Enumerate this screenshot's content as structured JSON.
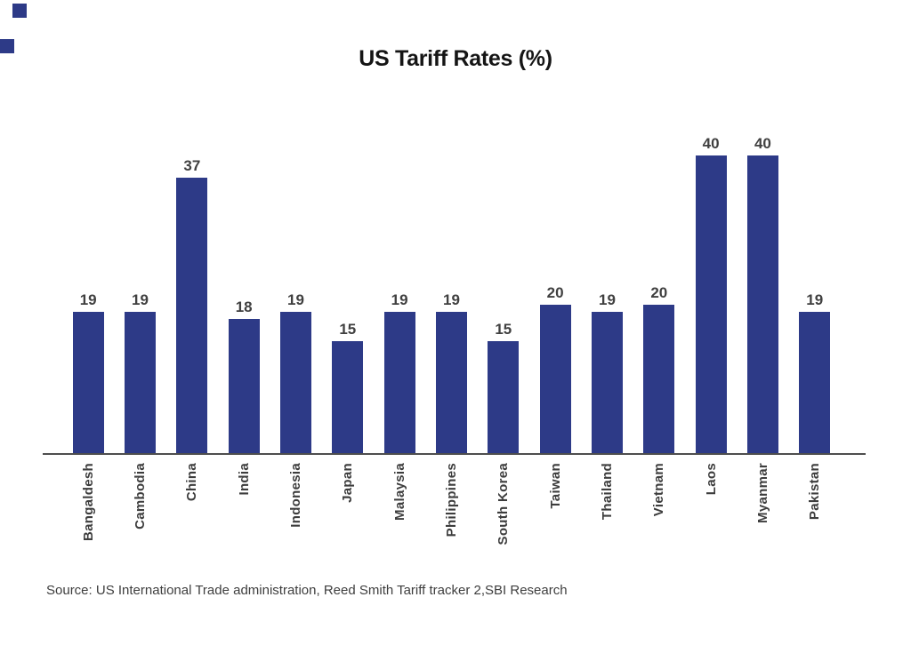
{
  "title": "US Tariff Rates (%)",
  "source_note": "Source: US International Trade administration, Reed Smith Tariff tracker 2,SBI Research",
  "colors": {
    "bar": "#2d3a87",
    "axis": "#4e4e4e",
    "value_label": "#404040",
    "category_label": "#3d3d3d",
    "title": "#151515",
    "source": "#3e3e3e",
    "corner_decor": "#2d3a87"
  },
  "chart_data": {
    "type": "bar",
    "title": "US Tariff Rates (%)",
    "categories": [
      "Bangaldesh",
      "Cambodia",
      "China",
      "India",
      "Indonesia",
      "Japan",
      "Malaysia",
      "Philippines",
      "South Korea",
      "Taiwan",
      "Thailand",
      "Vietnam",
      "Laos",
      "Myanmar",
      "Pakistan"
    ],
    "values": [
      19,
      19,
      37,
      18,
      19,
      15,
      19,
      19,
      15,
      20,
      19,
      20,
      40,
      40,
      19
    ],
    "xlabel": "",
    "ylabel": "",
    "ylim": [
      0,
      43
    ],
    "grid": false,
    "legend": "none",
    "value_labels_shown": true,
    "category_labels_rotation_degrees": 90
  }
}
